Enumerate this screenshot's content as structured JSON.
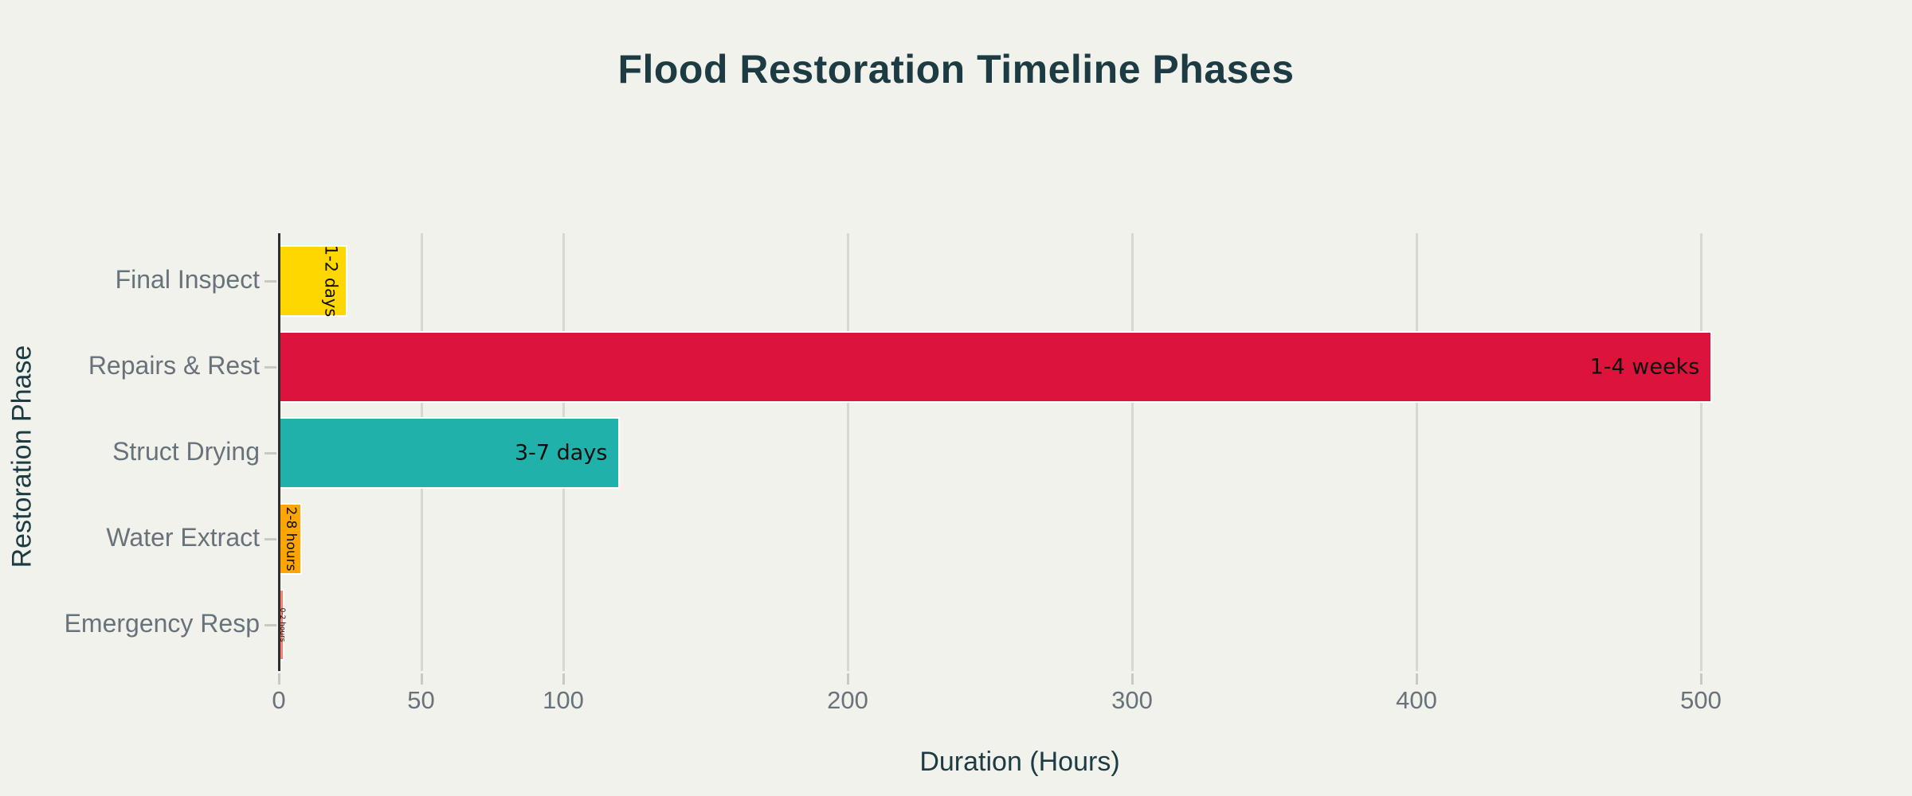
{
  "page": {
    "background_color": "#F2F2EC"
  },
  "chart_data": {
    "type": "bar",
    "orientation": "horizontal",
    "title": "Flood Restoration Timeline Phases",
    "xlabel": "Duration (Hours)",
    "ylabel": "Restoration Phase",
    "categories": [
      "Final Inspect",
      "Repairs & Rest",
      "Struct Drying",
      "Water Extract",
      "Emergency Resp"
    ],
    "values": [
      24,
      504,
      120,
      8,
      2
    ],
    "bar_labels": [
      "1-2 days",
      "1-4 weeks",
      "3-7 days",
      "2-8 hours",
      "0-2 hours"
    ],
    "bar_colors": [
      "#FFD700",
      "#DC143C",
      "#20B2AA",
      "#FFA500",
      "#FA8072"
    ],
    "bar_label_styles": [
      {
        "rotated": true,
        "size": 21
      },
      {
        "rotated": false,
        "size": 27
      },
      {
        "rotated": false,
        "size": 27
      },
      {
        "rotated": true,
        "size": 17
      },
      {
        "rotated": true,
        "size": 9
      }
    ],
    "x_ticks": [
      0,
      50,
      100,
      200,
      300,
      400,
      500
    ],
    "xlim": [
      0,
      521
    ],
    "grid": "vertical-on",
    "legend": "none",
    "colors": {
      "title": "#1C3B43",
      "axis_title": "#1C3B43",
      "tick_label": "#68727A",
      "gridline": "#D8D8D2",
      "axis_line": "#2E2E2E",
      "bar_edge": "#FFFFFF",
      "bar_value_text": "#0E0E0E"
    }
  }
}
